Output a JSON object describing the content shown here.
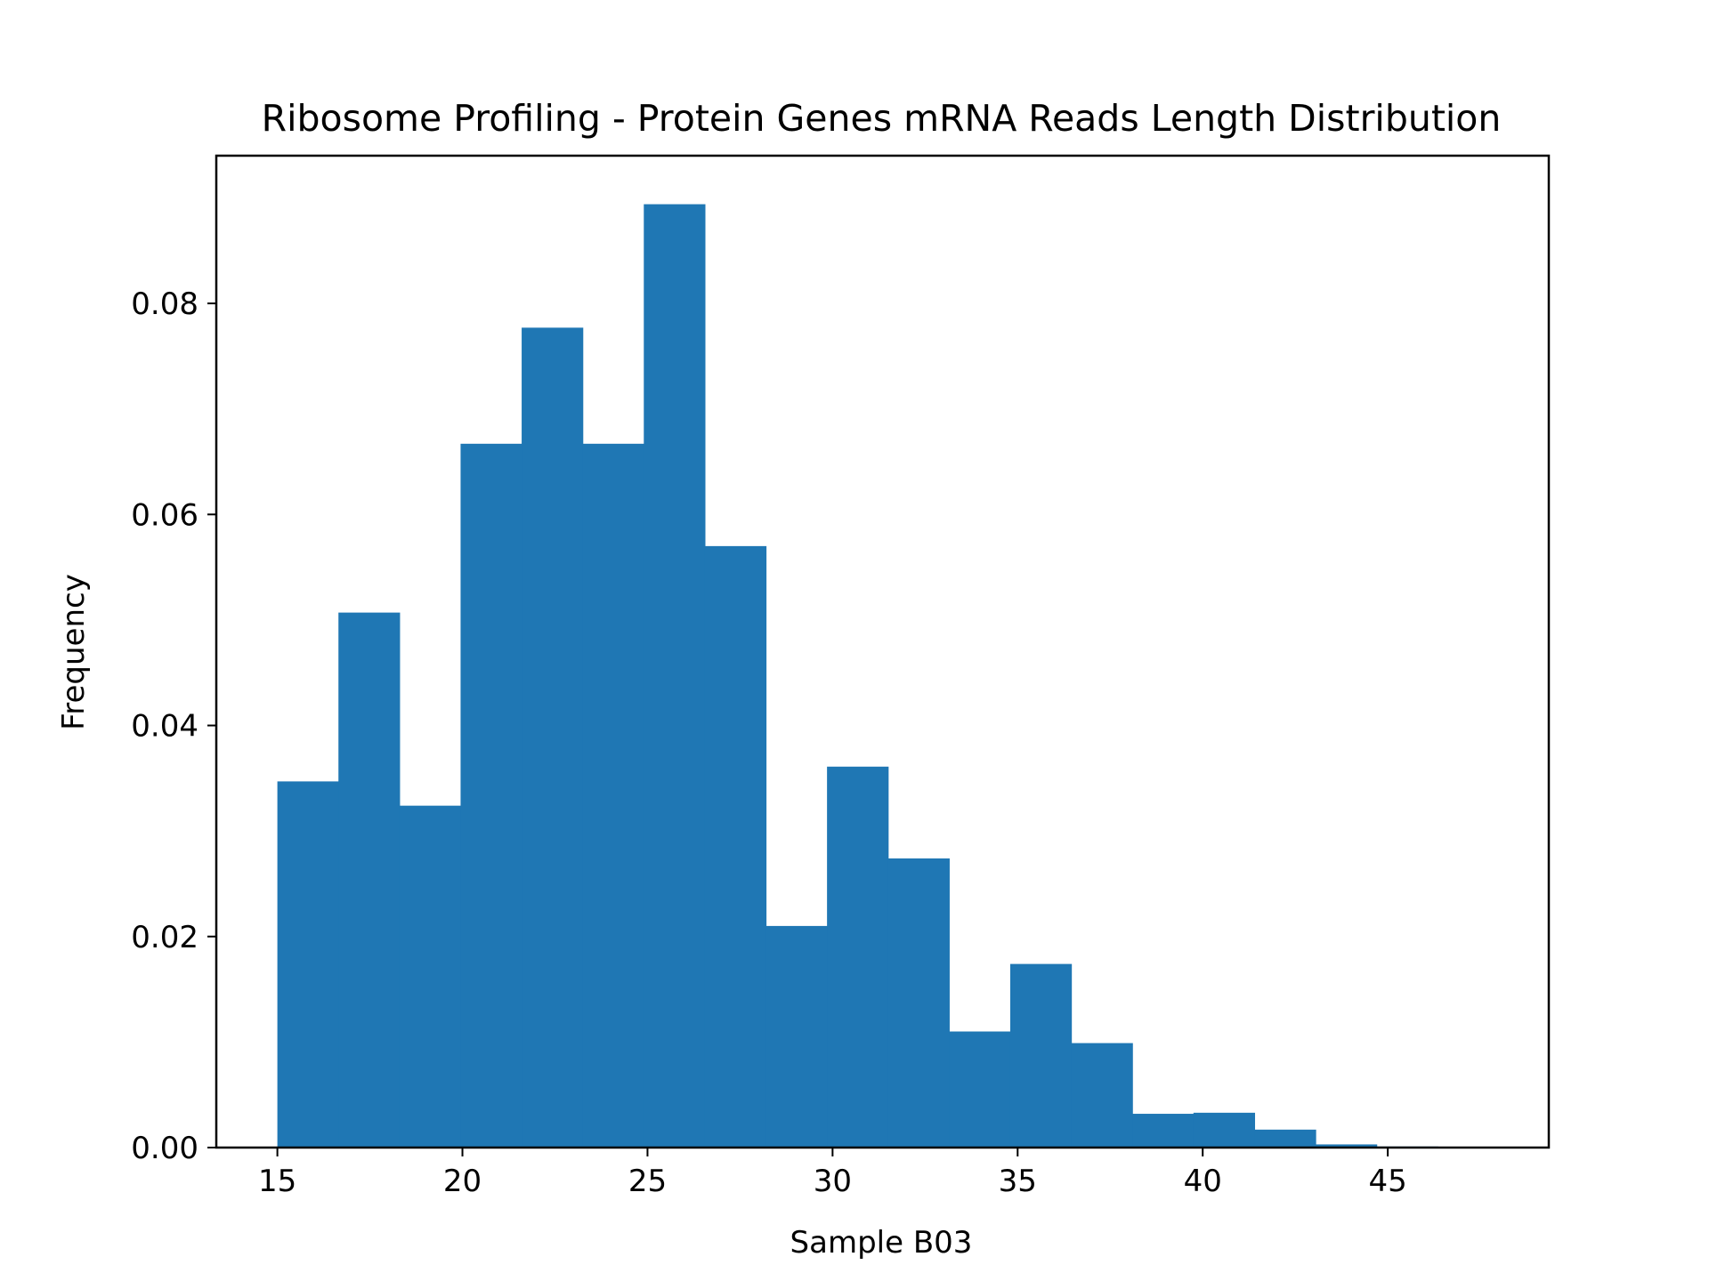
{
  "chart_data": {
    "type": "bar",
    "title": "Ribosome Profiling - Protein Genes mRNA Reads Length Distribution",
    "xlabel": "Sample B03",
    "ylabel": "Frequency",
    "xlim": [
      13.35,
      49.35
    ],
    "ylim": [
      0.0,
      0.094
    ],
    "xticks": [
      15,
      20,
      25,
      30,
      35,
      40,
      45
    ],
    "yticks": [
      0.0,
      0.02,
      0.04,
      0.06,
      0.08
    ],
    "ytick_labels": [
      "0.00",
      "0.02",
      "0.04",
      "0.06",
      "0.08"
    ],
    "bin_edges": [
      15.0,
      16.65,
      18.3,
      19.95,
      21.6,
      23.25,
      24.9,
      26.55,
      28.2,
      29.85,
      31.5,
      33.15,
      34.8,
      36.45,
      38.1,
      39.75,
      41.4,
      43.05,
      44.7,
      46.35
    ],
    "values": [
      0.0347,
      0.0507,
      0.0324,
      0.0667,
      0.0777,
      0.0667,
      0.0894,
      0.057,
      0.021,
      0.0361,
      0.0274,
      0.011,
      0.0174,
      0.0099,
      0.0032,
      0.0033,
      0.0017,
      0.0003,
      0.0001
    ],
    "grid": false,
    "bar_color": "#1f77b4"
  }
}
